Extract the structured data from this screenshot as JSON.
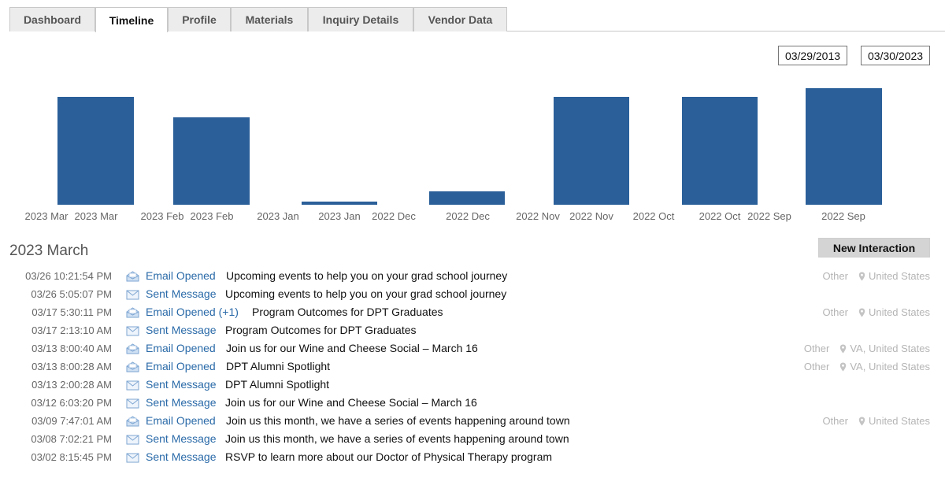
{
  "tabs": [
    {
      "label": "Dashboard",
      "active": false
    },
    {
      "label": "Timeline",
      "active": true
    },
    {
      "label": "Profile",
      "active": false
    },
    {
      "label": "Materials",
      "active": false
    },
    {
      "label": "Inquiry Details",
      "active": false
    },
    {
      "label": "Vendor Data",
      "active": false
    }
  ],
  "date_range": {
    "start": "03/29/2013",
    "end": "03/30/2023"
  },
  "chart_data": {
    "type": "bar",
    "color": "#2a5f99",
    "ticks": [
      "2023 Mar",
      "2023 Mar",
      "2023 Feb",
      "2023 Feb",
      "2023 Jan",
      "2023 Jan",
      "2022 Dec",
      "2022 Dec",
      "2022 Nov",
      "2022 Nov",
      "2022 Oct",
      "2022 Oct",
      "2022 Sep",
      "2022 Sep"
    ],
    "bars": [
      {
        "label": "2023 Mar",
        "value": 137
      },
      {
        "label": "2023 Feb",
        "value": 111
      },
      {
        "label": "2023 Jan",
        "value": 4
      },
      {
        "label": "2022 Dec",
        "value": 17
      },
      {
        "label": "2022 Nov",
        "value": 137
      },
      {
        "label": "2022 Oct",
        "value": 137
      },
      {
        "label": "2022 Sep",
        "value": 148
      }
    ]
  },
  "section": {
    "title": "2023 March",
    "new_button": "New Interaction"
  },
  "interactions": [
    {
      "time": "03/26 10:21:54 PM",
      "icon": "email-opened-icon",
      "type": "Email Opened",
      "subject": "Upcoming events to help you on your grad school journey",
      "source": "Other",
      "location": "United States"
    },
    {
      "time": "03/26 5:05:07 PM",
      "icon": "sent-message-icon",
      "type": "Sent Message",
      "subject": "Upcoming events to help you on your grad school journey",
      "source": "",
      "location": ""
    },
    {
      "time": "03/17 5:30:11 PM",
      "icon": "email-opened-icon",
      "type": "Email Opened (+1)",
      "subject": "Program Outcomes for DPT Graduates",
      "source": "Other",
      "location": "United States"
    },
    {
      "time": "03/17 2:13:10 AM",
      "icon": "sent-message-icon",
      "type": "Sent Message",
      "subject": "Program Outcomes for DPT Graduates",
      "source": "",
      "location": ""
    },
    {
      "time": "03/13 8:00:40 AM",
      "icon": "email-opened-icon",
      "type": "Email Opened",
      "subject": "Join us for our Wine and Cheese Social – March 16",
      "source": "Other",
      "location": "VA, United States"
    },
    {
      "time": "03/13 8:00:28 AM",
      "icon": "email-opened-icon",
      "type": "Email Opened",
      "subject": "DPT Alumni Spotlight",
      "source": "Other",
      "location": "VA, United States"
    },
    {
      "time": "03/13 2:00:28 AM",
      "icon": "sent-message-icon",
      "type": "Sent Message",
      "subject": "DPT Alumni Spotlight",
      "source": "",
      "location": ""
    },
    {
      "time": "03/12 6:03:20 PM",
      "icon": "sent-message-icon",
      "type": "Sent Message",
      "subject": "Join us for our Wine and Cheese Social – March 16",
      "source": "",
      "location": ""
    },
    {
      "time": "03/09 7:47:01 AM",
      "icon": "email-opened-icon",
      "type": "Email Opened",
      "subject": "Join us this month, we have a series of events happening around town",
      "source": "Other",
      "location": "United States"
    },
    {
      "time": "03/08 7:02:21 PM",
      "icon": "sent-message-icon",
      "type": "Sent Message",
      "subject": "Join us this month, we have a series of events happening around town",
      "source": "",
      "location": ""
    },
    {
      "time": "03/02 8:15:45 PM",
      "icon": "sent-message-icon",
      "type": "Sent Message",
      "subject": "RSVP to learn more about our Doctor of Physical Therapy program",
      "source": "",
      "location": ""
    }
  ]
}
